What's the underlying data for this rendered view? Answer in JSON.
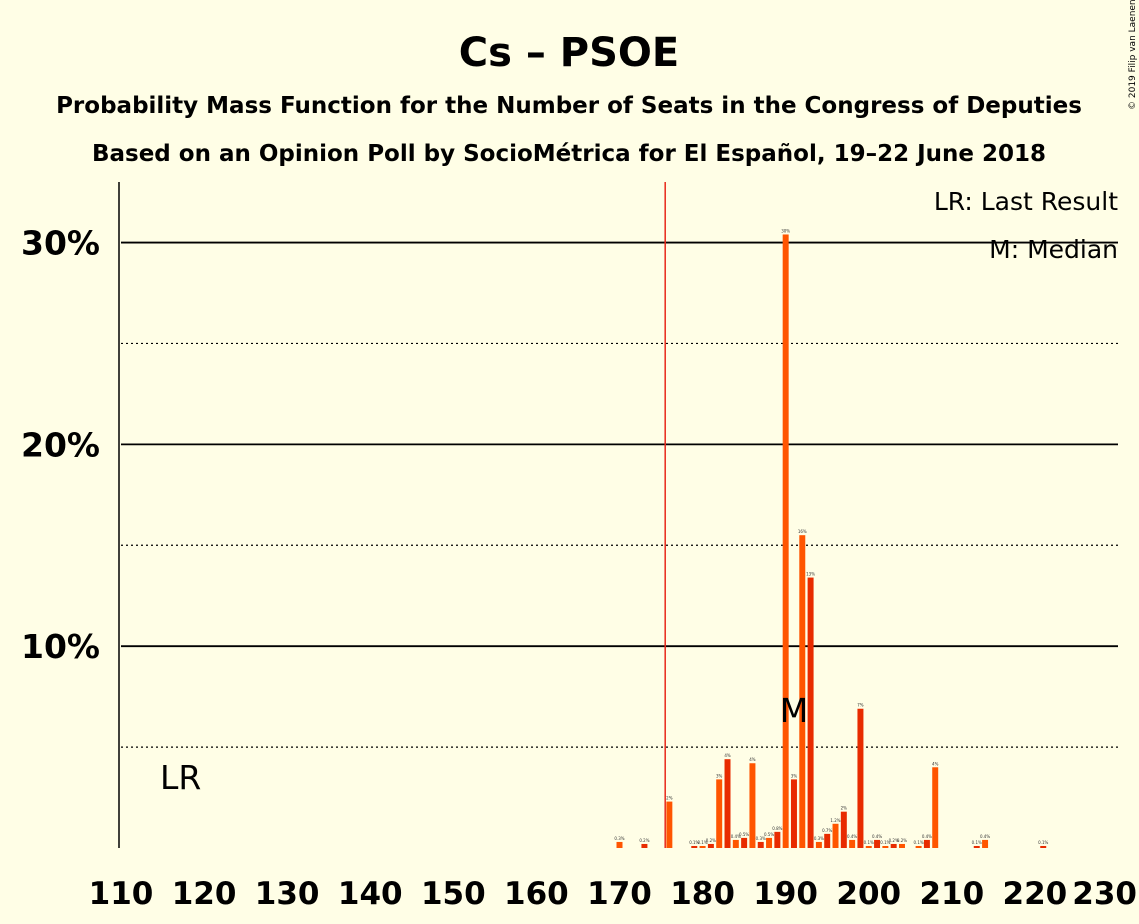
{
  "title": "Cs – PSOE",
  "subtitle1": "Probability Mass Function for the Number of Seats in the Congress of Deputies",
  "subtitle2": "Based on an Opinion Poll by SocioMétrica for El Español, 19–22 June 2018",
  "copyright": "© 2019 Filip van Laenen",
  "legend": {
    "last_result": "LR: Last Result",
    "median": "M: Median"
  },
  "markers": {
    "last_result_label": "LR",
    "median_label": "M",
    "last_result_seat": 176,
    "median_seat": 191
  },
  "colors": {
    "bar_orange": "#FF5500",
    "bar_red": "#E82B00",
    "last_result_line": "#E8281A",
    "background": "#FFFEE6"
  },
  "chart_data": {
    "type": "bar",
    "title": "Cs – PSOE",
    "xlabel": "",
    "ylabel": "",
    "xlim": [
      110,
      230
    ],
    "ylim": [
      0,
      0.33
    ],
    "x_ticks": [
      "110",
      "120",
      "130",
      "140",
      "150",
      "160",
      "170",
      "180",
      "190",
      "200",
      "210",
      "220",
      "230"
    ],
    "y_ticks": [
      {
        "value": 0.1,
        "label": "10%"
      },
      {
        "value": 0.2,
        "label": "20%"
      },
      {
        "value": 0.3,
        "label": "30%"
      }
    ],
    "grid": {
      "solid": [
        0.1,
        0.2,
        0.3
      ],
      "dotted": [
        0.05,
        0.15,
        0.25
      ]
    },
    "legend_position": "top-right",
    "bars": [
      {
        "seat": 170,
        "value": 0.003,
        "label": "0.3%"
      },
      {
        "seat": 173,
        "value": 0.002,
        "label": "0.2%"
      },
      {
        "seat": 176,
        "value": 0.023,
        "label": "2%"
      },
      {
        "seat": 179,
        "value": 0.001,
        "label": "0.1%"
      },
      {
        "seat": 180,
        "value": 0.001,
        "label": "0.1%"
      },
      {
        "seat": 181,
        "value": 0.002,
        "label": "0.2%"
      },
      {
        "seat": 182,
        "value": 0.034,
        "label": "3%"
      },
      {
        "seat": 183,
        "value": 0.044,
        "label": "4%"
      },
      {
        "seat": 184,
        "value": 0.004,
        "label": "0.4%"
      },
      {
        "seat": 185,
        "value": 0.005,
        "label": "0.5%"
      },
      {
        "seat": 186,
        "value": 0.042,
        "label": "4%"
      },
      {
        "seat": 187,
        "value": 0.003,
        "label": "0.3%"
      },
      {
        "seat": 188,
        "value": 0.005,
        "label": "0.5%"
      },
      {
        "seat": 189,
        "value": 0.008,
        "label": "0.8%"
      },
      {
        "seat": 190,
        "value": 0.304,
        "label": "30%"
      },
      {
        "seat": 191,
        "value": 0.034,
        "label": "3%"
      },
      {
        "seat": 192,
        "value": 0.155,
        "label": "16%"
      },
      {
        "seat": 193,
        "value": 0.134,
        "label": "13%"
      },
      {
        "seat": 194,
        "value": 0.003,
        "label": "0.3%"
      },
      {
        "seat": 195,
        "value": 0.007,
        "label": "0.7%"
      },
      {
        "seat": 196,
        "value": 0.012,
        "label": "1.2%"
      },
      {
        "seat": 197,
        "value": 0.018,
        "label": "2%"
      },
      {
        "seat": 198,
        "value": 0.004,
        "label": "0.4%"
      },
      {
        "seat": 199,
        "value": 0.069,
        "label": "7%"
      },
      {
        "seat": 200,
        "value": 0.001,
        "label": "0.1%"
      },
      {
        "seat": 201,
        "value": 0.004,
        "label": "0.4%"
      },
      {
        "seat": 202,
        "value": 0.001,
        "label": "0.1%"
      },
      {
        "seat": 203,
        "value": 0.002,
        "label": "0.2%"
      },
      {
        "seat": 204,
        "value": 0.002,
        "label": "0.2%"
      },
      {
        "seat": 206,
        "value": 0.001,
        "label": "0.1%"
      },
      {
        "seat": 207,
        "value": 0.004,
        "label": "0.4%"
      },
      {
        "seat": 208,
        "value": 0.04,
        "label": "4%"
      },
      {
        "seat": 213,
        "value": 0.001,
        "label": "0.1%"
      },
      {
        "seat": 214,
        "value": 0.004,
        "label": "0.4%"
      },
      {
        "seat": 221,
        "value": 0.001,
        "label": "0.1%"
      }
    ]
  }
}
